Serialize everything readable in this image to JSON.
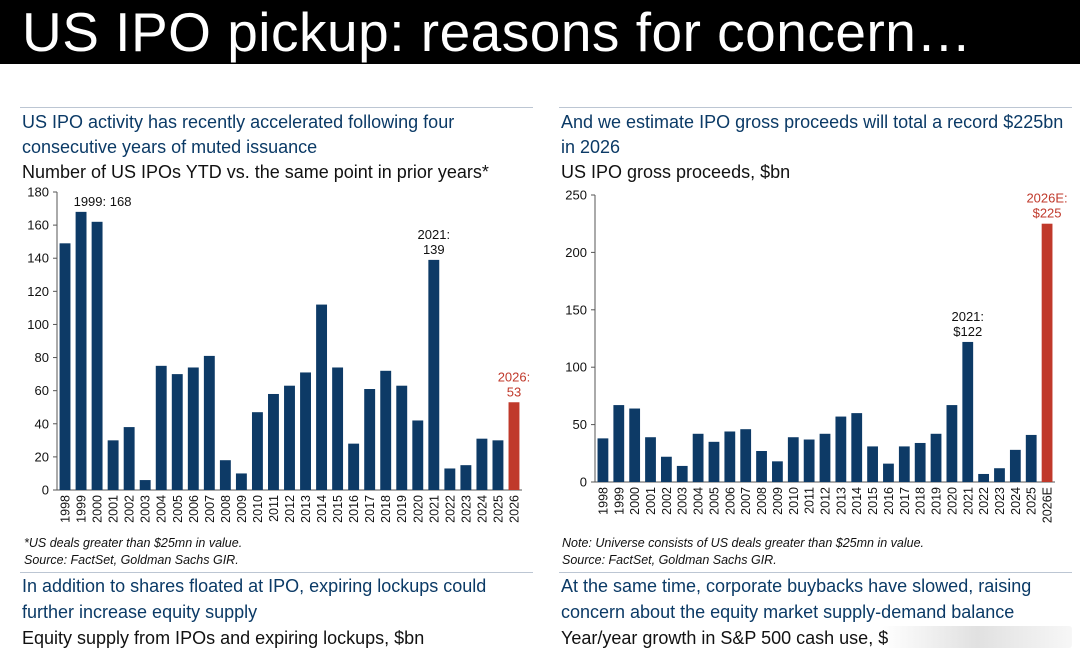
{
  "header": {
    "title": "US IPO pickup: reasons for concern…"
  },
  "colors": {
    "bar": "#0d3a66",
    "highlight": "#c0392b",
    "heading": "#0b3a66"
  },
  "panels": {
    "top_left": {
      "heading": "US IPO activity has recently accelerated following four consecutive years of muted issuance",
      "subtitle": "Number of US IPOs YTD vs. the same point in prior years*",
      "note1": "*US deals greater than $25mn in value.",
      "note2": "Source: FactSet, Goldman Sachs GIR."
    },
    "top_right": {
      "heading": "And we estimate IPO gross proceeds will total a record $225bn in 2026",
      "subtitle": "US IPO gross proceeds, $bn",
      "note1": "Note: Universe consists of US deals greater than $25mn in value.",
      "note2": "Source: FactSet, Goldman Sachs GIR."
    },
    "bottom_left": {
      "heading": "In addition to shares floated at IPO, expiring lockups could further increase equity supply",
      "subtitle": "Equity supply from IPOs and expiring lockups, $bn"
    },
    "bottom_right": {
      "heading": "At the same time, corporate buybacks have slowed, raising concern about the equity market supply-demand balance",
      "subtitle": "Year/year growth in S&P 500 cash use, $"
    }
  },
  "chart_data": [
    {
      "type": "bar",
      "title": "Number of US IPOs YTD vs. the same point in prior years*",
      "categories": [
        "1998",
        "1999",
        "2000",
        "2001",
        "2002",
        "2003",
        "2004",
        "2005",
        "2006",
        "2007",
        "2008",
        "2009",
        "2010",
        "2011",
        "2012",
        "2013",
        "2014",
        "2015",
        "2016",
        "2017",
        "2018",
        "2019",
        "2020",
        "2021",
        "2022",
        "2023",
        "2024",
        "2025",
        "2026"
      ],
      "values": [
        149,
        168,
        162,
        30,
        38,
        6,
        75,
        70,
        74,
        81,
        18,
        10,
        47,
        58,
        63,
        71,
        112,
        74,
        28,
        61,
        72,
        63,
        42,
        139,
        13,
        15,
        31,
        30,
        53
      ],
      "highlight_index": 28,
      "ylim": [
        0,
        180
      ],
      "yticks": [
        0,
        20,
        40,
        60,
        80,
        100,
        120,
        140,
        160,
        180
      ],
      "annotations": [
        {
          "category": "1999",
          "lines": [
            "1999: 168"
          ],
          "color": "#111111"
        },
        {
          "category": "2021",
          "lines": [
            "2021:",
            "139"
          ],
          "color": "#111111"
        },
        {
          "category": "2026",
          "lines": [
            "2026:",
            "53"
          ],
          "color": "#c0392b"
        }
      ]
    },
    {
      "type": "bar",
      "title": "US IPO gross proceeds, $bn",
      "categories": [
        "1998",
        "1999",
        "2000",
        "2001",
        "2002",
        "2003",
        "2004",
        "2005",
        "2006",
        "2007",
        "2008",
        "2009",
        "2010",
        "2011",
        "2012",
        "2013",
        "2014",
        "2015",
        "2016",
        "2017",
        "2018",
        "2019",
        "2020",
        "2021",
        "2022",
        "2023",
        "2024",
        "2025",
        "2026E"
      ],
      "values": [
        38,
        67,
        64,
        39,
        22,
        14,
        42,
        35,
        44,
        46,
        27,
        18,
        39,
        37,
        42,
        57,
        60,
        31,
        16,
        31,
        34,
        42,
        67,
        122,
        7,
        12,
        28,
        41,
        225
      ],
      "highlight_index": 28,
      "ylim": [
        0,
        250
      ],
      "yticks": [
        0,
        50,
        100,
        150,
        200,
        250
      ],
      "annotations": [
        {
          "category": "2021",
          "lines": [
            "2021:",
            "$122"
          ],
          "color": "#111111"
        },
        {
          "category": "2026E",
          "lines": [
            "2026E:",
            "$225"
          ],
          "color": "#c0392b"
        }
      ]
    }
  ]
}
